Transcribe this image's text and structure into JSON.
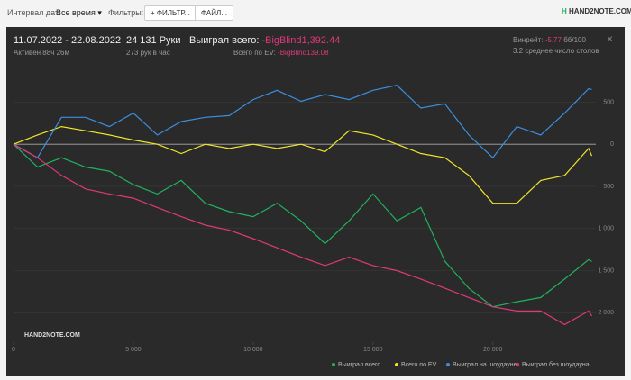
{
  "toolbar": {
    "interval_label": "Интервал дат:",
    "interval_value": "Все время",
    "filters_label": "Фильтры:",
    "filter_button": "ФИЛЬТР...",
    "file_button": "ФАЙЛ...",
    "logo": "HAND2NOTE.COM"
  },
  "stats": {
    "dates": "11.07.2022 - 22.08.2022",
    "active": "Активен 88ч 26м",
    "hands": "24 131 Руки",
    "hands_per_hour": "273 рук в час",
    "won_label": "Выиграл всего:",
    "won_value": "-BigBlind1,392.44",
    "ev_label": "Всего по EV:",
    "ev_value": "-BigBlind139.08",
    "winrate_label": "Винрейт:",
    "winrate_value": "-5.77",
    "winrate_unit": "бб/100",
    "tables": "3.2 среднее число столов"
  },
  "chart_data": {
    "type": "line",
    "watermark": "HAND2NOTE.COM",
    "x": [
      0,
      1000,
      2000,
      3000,
      4000,
      5000,
      6000,
      7000,
      8000,
      9000,
      10000,
      11000,
      12000,
      13000,
      14000,
      15000,
      16000,
      17000,
      18000,
      19000,
      20000,
      21000,
      22000,
      23000,
      24000,
      24131
    ],
    "xlim": [
      0,
      24300
    ],
    "xticks": [
      0,
      {
        "value": 5000,
        "label": "5 000"
      },
      {
        "value": 10000,
        "label": "10 000"
      },
      {
        "value": 15000,
        "label": "15 000"
      },
      {
        "value": 20000,
        "label": "20 000"
      }
    ],
    "ylim": [
      -2350,
      1050
    ],
    "yticks": [
      {
        "value": 500,
        "label": "500"
      },
      0,
      {
        "value": -500,
        "label": "500"
      },
      {
        "value": -1000,
        "label": "1 000"
      },
      {
        "value": -1500,
        "label": "1 500"
      },
      {
        "value": -2000,
        "label": "2 000"
      }
    ],
    "grid": true,
    "legend": "bottom-right",
    "series": [
      {
        "name": "Выиграл всего",
        "color": "#1fb35f",
        "values": [
          0,
          -270,
          -160,
          -270,
          -320,
          -480,
          -590,
          -430,
          -700,
          -800,
          -860,
          -700,
          -910,
          -1180,
          -910,
          -590,
          -910,
          -750,
          -1390,
          -1710,
          -1930,
          -1870,
          -1820,
          -1600,
          -1370,
          -1392
        ]
      },
      {
        "name": "Всего по EV",
        "color": "#f0e529",
        "values": [
          0,
          110,
          210,
          160,
          110,
          50,
          0,
          -110,
          0,
          -50,
          0,
          -50,
          0,
          -90,
          160,
          110,
          0,
          -110,
          -160,
          -370,
          -700,
          -700,
          -430,
          -370,
          -50,
          -139
        ]
      },
      {
        "name": "Выиграл на шоудауне",
        "color": "#3b8fe0",
        "values": [
          0,
          -160,
          320,
          320,
          210,
          370,
          110,
          270,
          320,
          340,
          530,
          640,
          510,
          590,
          530,
          640,
          700,
          430,
          480,
          110,
          -160,
          210,
          110,
          370,
          660,
          650
        ]
      },
      {
        "name": "Выиграл без шоудауна",
        "color": "#e0387a",
        "values": [
          0,
          -160,
          -370,
          -530,
          -590,
          -640,
          -750,
          -860,
          -960,
          -1020,
          -1120,
          -1230,
          -1340,
          -1440,
          -1340,
          -1440,
          -1500,
          -1600,
          -1710,
          -1820,
          -1930,
          -1980,
          -1980,
          -2140,
          -1980,
          -2040
        ]
      }
    ]
  }
}
